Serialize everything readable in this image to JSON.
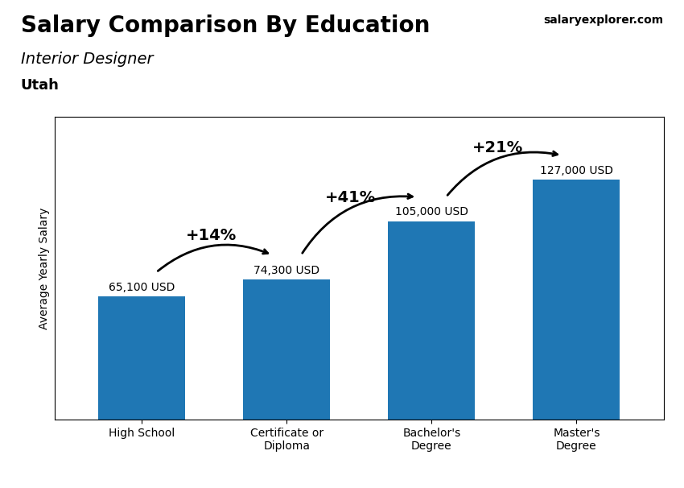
{
  "chart_data": {
    "type": "bar",
    "title": "Salary Comparison By Education",
    "subtitle": "Interior Designer",
    "location": "Utah",
    "watermark": "salaryexplorer.com",
    "ylabel": "Average Yearly Salary",
    "categories": [
      "High School",
      "Certificate or\nDiploma",
      "Bachelor's\nDegree",
      "Master's\nDegree"
    ],
    "values": [
      65100,
      74300,
      105000,
      127000
    ],
    "value_labels": [
      "65,100 USD",
      "74,300 USD",
      "105,000 USD",
      "127,000 USD"
    ],
    "data_labels": true,
    "annotations": [
      {
        "text": "+14%",
        "from": "High School",
        "to": "Certificate or\nDiploma"
      },
      {
        "text": "+41%",
        "from": "Certificate or\nDiploma",
        "to": "Bachelor's\nDegree"
      },
      {
        "text": "+21%",
        "from": "Bachelor's\nDegree",
        "to": "Master's\nDegree"
      }
    ],
    "ylim": [
      0,
      160000
    ],
    "yticks": [],
    "tick_labels": "x",
    "grid": false
  }
}
